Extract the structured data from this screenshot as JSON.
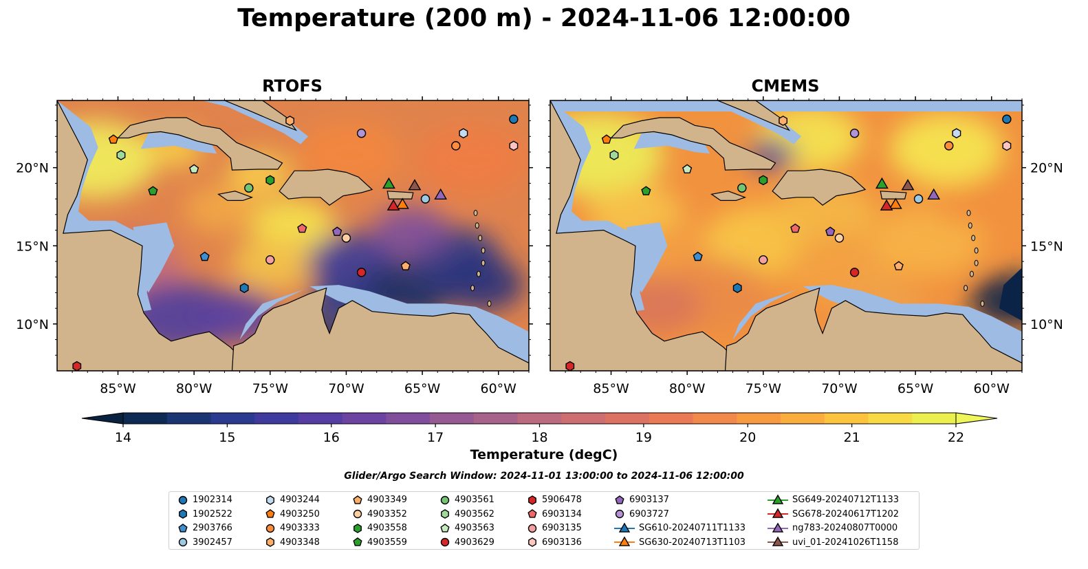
{
  "title": "Temperature (200 m) - 2024-11-06 12:00:00",
  "panels": [
    {
      "title": "RTOFS"
    },
    {
      "title": "CMEMS"
    }
  ],
  "map_data": {
    "lon_range": [
      -89,
      -58
    ],
    "lat_range": [
      7,
      24.3
    ],
    "x_ticks": [
      -85,
      -80,
      -75,
      -70,
      -65,
      -60
    ],
    "x_tick_labels": [
      "85°W",
      "80°W",
      "75°W",
      "70°W",
      "65°W",
      "60°W"
    ],
    "y_ticks": [
      10,
      15,
      20
    ],
    "y_tick_labels": [
      "10°N",
      "15°N",
      "20°N"
    ],
    "colors": {
      "land": "#d2b48c",
      "shelf": "#9dbbe3",
      "coast": "#000000"
    }
  },
  "colorbar": {
    "min": 14,
    "max": 22,
    "ticks": [
      14,
      15,
      16,
      17,
      18,
      19,
      20,
      21,
      22
    ],
    "tick_labels": [
      "14",
      "15",
      "16",
      "17",
      "18",
      "19",
      "20",
      "21",
      "22"
    ],
    "label": "Temperature (degC)",
    "colors": [
      "#0e2a52",
      "#1b3472",
      "#2b3a8e",
      "#3f3a9e",
      "#553da3",
      "#6b44a2",
      "#814e9c",
      "#965a93",
      "#a8638a",
      "#bb6a80",
      "#cc6e72",
      "#dc7262",
      "#e97a55",
      "#f2884a",
      "#f89a40",
      "#fbad3e",
      "#fcc33f",
      "#f8da45",
      "#ecf04f"
    ],
    "extend_low_color": "#0a2240",
    "extend_high_color": "#eef65a"
  },
  "search_window": "Glider/Argo Search Window: 2024-11-01 13:00:00 to 2024-11-06 12:00:00",
  "floats": [
    {
      "id": "1902314",
      "marker": "circle",
      "color": "#1f77b4",
      "lon": -59,
      "lat": 23.1
    },
    {
      "id": "1902522",
      "marker": "hexagon",
      "color": "#1f77b4",
      "lon": -76.7,
      "lat": 12.3
    },
    {
      "id": "2903766",
      "marker": "pentagon",
      "color": "#3f8fd0",
      "lon": -79.3,
      "lat": 14.3
    },
    {
      "id": "3902457",
      "marker": "circle",
      "color": "#9ecae1",
      "lon": -64.8,
      "lat": 18
    },
    {
      "id": "4903244",
      "marker": "hexagon",
      "color": "#c6dbef",
      "lon": -62.3,
      "lat": 22.2
    },
    {
      "id": "4903250",
      "marker": "pentagon",
      "color": "#ff7f0e",
      "lon": -85.3,
      "lat": 21.8
    },
    {
      "id": "4903333",
      "marker": "circle",
      "color": "#fd8d3c",
      "lon": -62.8,
      "lat": 21.4
    },
    {
      "id": "4903348",
      "marker": "hexagon",
      "color": "#fdae6b",
      "lon": -73.7,
      "lat": 23
    },
    {
      "id": "4903349",
      "marker": "pentagon",
      "color": "#fdae6b",
      "lon": -66.1,
      "lat": 13.7
    },
    {
      "id": "4903352",
      "marker": "circle",
      "color": "#fdd0a2",
      "lon": -70,
      "lat": 15.5
    },
    {
      "id": "4903558",
      "marker": "hexagon",
      "color": "#2ca02c",
      "lon": -75,
      "lat": 19.2
    },
    {
      "id": "4903559",
      "marker": "pentagon",
      "color": "#2ca02c",
      "lon": -82.7,
      "lat": 18.5
    },
    {
      "id": "4903561",
      "marker": "circle",
      "color": "#74c476",
      "lon": -76.4,
      "lat": 18.7
    },
    {
      "id": "4903562",
      "marker": "hexagon",
      "color": "#a1d99b",
      "lon": -84.8,
      "lat": 20.8
    },
    {
      "id": "4903563",
      "marker": "pentagon",
      "color": "#c7e9c0",
      "lon": -80,
      "lat": 19.9
    },
    {
      "id": "4903629",
      "marker": "circle",
      "color": "#d62728",
      "lon": -69,
      "lat": 13.3
    },
    {
      "id": "5906478",
      "marker": "hexagon",
      "color": "#d62728",
      "lon": -87.7,
      "lat": 7.3
    },
    {
      "id": "6903134",
      "marker": "pentagon",
      "color": "#f0696a",
      "lon": -72.9,
      "lat": 16.1
    },
    {
      "id": "6903135",
      "marker": "circle",
      "color": "#f4a0a0",
      "lon": -75,
      "lat": 14.1
    },
    {
      "id": "6903136",
      "marker": "hexagon",
      "color": "#fcc5c0",
      "lon": -59,
      "lat": 21.4
    },
    {
      "id": "6903137",
      "marker": "pentagon",
      "color": "#9467bd",
      "lon": -70.6,
      "lat": 15.9
    },
    {
      "id": "6903727",
      "marker": "circle",
      "color": "#b294d6",
      "lon": -69,
      "lat": 22.2
    }
  ],
  "gliders": [
    {
      "id": "SG610-20240711T1133",
      "color": "#1f77b4"
    },
    {
      "id": "SG630-20240713T1103",
      "color": "#ff7f0e",
      "lon": -66.3,
      "lat": 17.6
    },
    {
      "id": "SG649-20240712T1133",
      "color": "#2ca02c",
      "lon": -67.2,
      "lat": 18.9
    },
    {
      "id": "SG678-20240617T1202",
      "color": "#d62728",
      "lon": -66.9,
      "lat": 17.5
    },
    {
      "id": "ng783-20240807T0000",
      "color": "#9467bd",
      "lon": -63.8,
      "lat": 18.2
    },
    {
      "id": "uvi_01-20241026T1158",
      "color": "#8c564b",
      "lon": -65.5,
      "lat": 18.8
    }
  ]
}
